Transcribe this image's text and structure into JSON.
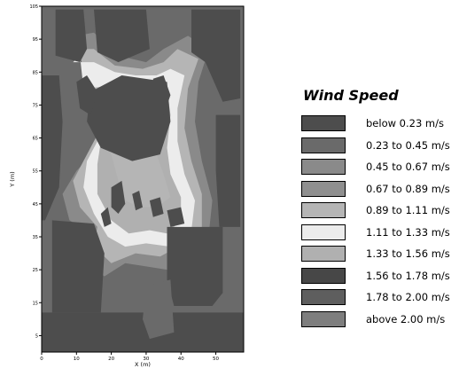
{
  "chart_data": {
    "type": "heatmap",
    "title": "",
    "xlabel": "X (m)",
    "ylabel": "Y (m)",
    "xlim": [
      0,
      58
    ],
    "ylim": [
      0,
      105
    ],
    "x_ticks": [
      "0",
      "10",
      "20",
      "30",
      "40",
      "50"
    ],
    "y_ticks": [
      "5",
      "15",
      "25",
      "35",
      "45",
      "55",
      "65",
      "75",
      "85",
      "95",
      "105"
    ],
    "legend": {
      "title": "Wind Speed",
      "placement": "right",
      "items": [
        {
          "label": "below 0.23 m/s",
          "color": "#4d4d4d"
        },
        {
          "label": "0.23 to 0.45 m/s",
          "color": "#6a6a6a"
        },
        {
          "label": "0.45 to 0.67 m/s",
          "color": "#8a8a8a"
        },
        {
          "label": "0.67 to 0.89 m/s",
          "color": "#8f8f8f"
        },
        {
          "label": "0.89 to 1.11 m/s",
          "color": "#b5b5b5"
        },
        {
          "label": "1.11 to 1.33 m/s",
          "color": "#ececec"
        },
        {
          "label": "1.33 to 1.56 m/s",
          "color": "#b0b0b0"
        },
        {
          "label": "1.56 to 1.78 m/s",
          "color": "#474747"
        },
        {
          "label": "1.78 to 2.00 m/s",
          "color": "#5e5e5e"
        },
        {
          "label": "above 2.00 m/s",
          "color": "#7e7e7e"
        }
      ]
    },
    "regions": [
      {
        "name": "building-north-left",
        "points": [
          [
            4,
            104
          ],
          [
            12,
            104
          ],
          [
            13,
            92
          ],
          [
            11,
            88
          ],
          [
            4,
            90
          ]
        ],
        "level": 0
      },
      {
        "name": "building-north-mid",
        "points": [
          [
            15,
            104
          ],
          [
            30,
            104
          ],
          [
            31,
            92
          ],
          [
            22,
            88
          ],
          [
            16,
            91
          ]
        ],
        "level": 0
      },
      {
        "name": "building-north-right",
        "points": [
          [
            43,
            104
          ],
          [
            57,
            104
          ],
          [
            57,
            77
          ],
          [
            52,
            76
          ],
          [
            47,
            88
          ],
          [
            43,
            91
          ]
        ],
        "level": 0
      },
      {
        "name": "building-west",
        "points": [
          [
            0,
            84
          ],
          [
            5,
            84
          ],
          [
            6,
            70
          ],
          [
            5,
            50
          ],
          [
            1,
            40
          ],
          [
            0,
            40
          ]
        ],
        "level": 0
      },
      {
        "name": "building-east",
        "points": [
          [
            50,
            72
          ],
          [
            57,
            72
          ],
          [
            57,
            38
          ],
          [
            51,
            38
          ],
          [
            50,
            55
          ]
        ],
        "level": 0
      },
      {
        "name": "wake-center-core",
        "points": [
          [
            14,
            79
          ],
          [
            23,
            84
          ],
          [
            36,
            82
          ],
          [
            37,
            70
          ],
          [
            34,
            60
          ],
          [
            26,
            58
          ],
          [
            17,
            62
          ],
          [
            13,
            70
          ]
        ],
        "level": 0
      },
      {
        "name": "vortex-west",
        "points": [
          [
            10,
            82
          ],
          [
            13,
            84
          ],
          [
            16,
            79
          ],
          [
            14,
            72
          ],
          [
            11,
            74
          ]
        ],
        "level": 0
      },
      {
        "name": "vortex-east",
        "points": [
          [
            32,
            83
          ],
          [
            35,
            84
          ],
          [
            37,
            78
          ],
          [
            35,
            72
          ],
          [
            32,
            75
          ]
        ],
        "level": 0
      },
      {
        "name": "building-southwest",
        "points": [
          [
            3,
            40
          ],
          [
            15,
            39
          ],
          [
            18,
            30
          ],
          [
            17,
            12
          ],
          [
            3,
            12
          ]
        ],
        "level": 0
      },
      {
        "name": "building-southeast",
        "points": [
          [
            36,
            38
          ],
          [
            52,
            38
          ],
          [
            52,
            18
          ],
          [
            49,
            14
          ],
          [
            38,
            14
          ],
          [
            36,
            22
          ]
        ],
        "level": 0
      },
      {
        "name": "south-strip",
        "points": [
          [
            0,
            12
          ],
          [
            58,
            12
          ],
          [
            58,
            0
          ],
          [
            0,
            0
          ]
        ],
        "level": 0
      },
      {
        "name": "south-gap-wake",
        "points": [
          [
            30,
            20
          ],
          [
            37,
            22
          ],
          [
            38,
            6
          ],
          [
            31,
            4
          ],
          [
            29,
            10
          ]
        ],
        "level": 1
      },
      {
        "name": "central-patch-1",
        "points": [
          [
            20,
            50
          ],
          [
            23,
            52
          ],
          [
            24,
            45
          ],
          [
            22,
            42
          ],
          [
            20,
            44
          ]
        ],
        "level": 0
      },
      {
        "name": "central-patch-2",
        "points": [
          [
            26,
            48
          ],
          [
            28,
            49
          ],
          [
            29,
            44
          ],
          [
            27,
            43
          ]
        ],
        "level": 0
      },
      {
        "name": "central-patch-3",
        "points": [
          [
            31,
            46
          ],
          [
            34,
            47
          ],
          [
            35,
            42
          ],
          [
            32,
            41
          ]
        ],
        "level": 0
      },
      {
        "name": "central-patch-4",
        "points": [
          [
            36,
            43
          ],
          [
            40,
            44
          ],
          [
            41,
            39
          ],
          [
            37,
            38
          ]
        ],
        "level": 0
      },
      {
        "name": "central-patch-5",
        "points": [
          [
            17,
            42
          ],
          [
            19,
            44
          ],
          [
            20,
            39
          ],
          [
            18,
            38
          ]
        ],
        "level": 0
      }
    ]
  }
}
